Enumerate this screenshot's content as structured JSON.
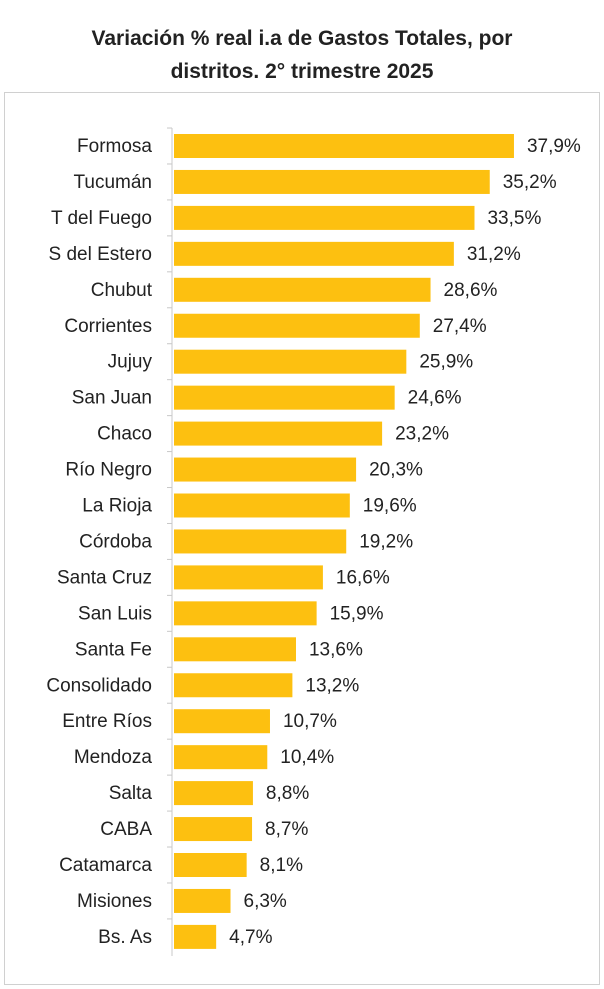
{
  "chart_data": {
    "type": "hbar",
    "title": "Variación % real i.a de Gastos Totales, por distritos. 2° trimestre 2025",
    "categories": [
      "Formosa",
      "Tucumán",
      "T del Fuego",
      "S del Estero",
      "Chubut",
      "Corrientes",
      "Jujuy",
      "San Juan",
      "Chaco",
      "Río Negro",
      "La Rioja",
      "Córdoba",
      "Santa Cruz",
      "San Luis",
      "Santa Fe",
      "Consolidado",
      "Entre Ríos",
      "Mendoza",
      "Salta",
      "CABA",
      "Catamarca",
      "Misiones",
      "Bs. As"
    ],
    "values": [
      37.9,
      35.2,
      33.5,
      31.2,
      28.6,
      27.4,
      25.9,
      24.6,
      23.2,
      20.3,
      19.6,
      19.2,
      16.6,
      15.9,
      13.6,
      13.2,
      10.7,
      10.4,
      8.8,
      8.7,
      8.1,
      6.3,
      4.7
    ],
    "value_labels": [
      "37,9%",
      "35,2%",
      "33,5%",
      "31,2%",
      "28,6%",
      "27,4%",
      "25,9%",
      "24,6%",
      "23,2%",
      "20,3%",
      "19,6%",
      "19,2%",
      "16,6%",
      "15,9%",
      "13,6%",
      "13,2%",
      "10,7%",
      "10,4%",
      "8,8%",
      "8,7%",
      "8,1%",
      "6,3%",
      "4,7%"
    ],
    "color": "#fdc010"
  }
}
